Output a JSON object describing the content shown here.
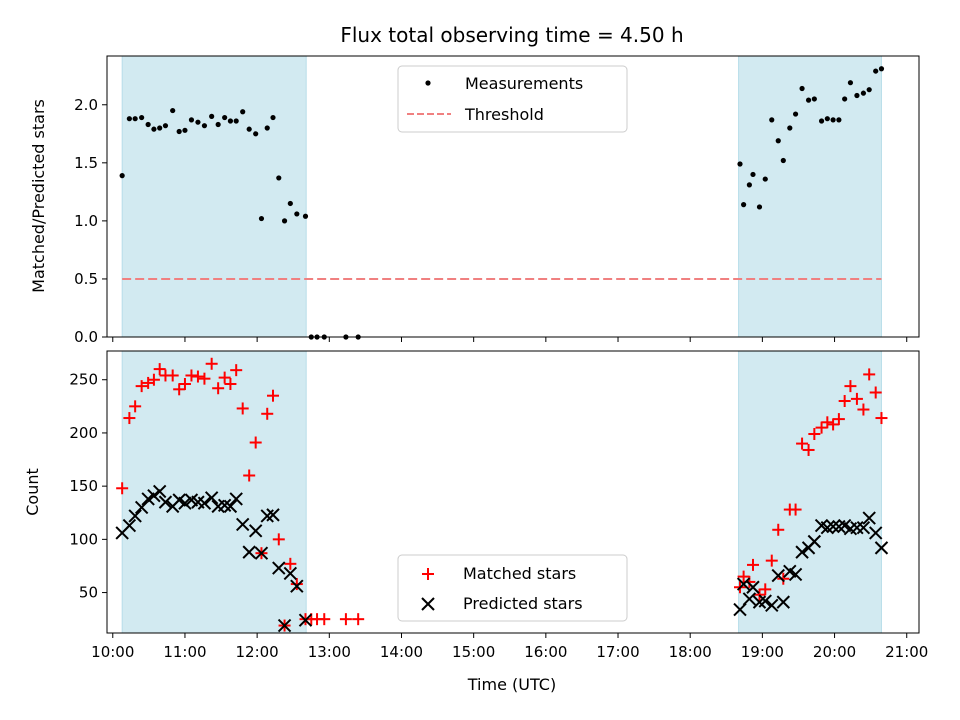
{
  "chart_data": [
    {
      "type": "scatter",
      "title": "Flux total observing time = 4.50 h",
      "xlabel": "",
      "ylabel": "Matched/Predicted stars",
      "xlim": [
        9.92,
        21.17
      ],
      "ylim": [
        0.0,
        2.42
      ],
      "yticks": [
        0.0,
        0.5,
        1.0,
        1.5,
        2.0
      ],
      "yticklabels": [
        "0.0",
        "0.5",
        "1.0",
        "1.5",
        "2.0"
      ],
      "shaded_spans": [
        {
          "start": 10.13,
          "end": 12.68,
          "color": "#add8e6"
        },
        {
          "start": 18.67,
          "end": 20.65,
          "color": "#add8e6"
        }
      ],
      "threshold": {
        "name": "Threshold",
        "value": 0.5,
        "x_start": 10.13,
        "x_end": 20.65,
        "color": "#f08080",
        "style": "dashed"
      },
      "legend_position": "top-center",
      "series": [
        {
          "name": "Measurements",
          "marker": "dot",
          "color": "#000000",
          "x": [
            10.13,
            10.23,
            10.31,
            10.4,
            10.49,
            10.57,
            10.65,
            10.73,
            10.83,
            10.92,
            11.0,
            11.09,
            11.18,
            11.27,
            11.37,
            11.46,
            11.55,
            11.63,
            11.71,
            11.8,
            11.89,
            11.98,
            12.06,
            12.14,
            12.22,
            12.3,
            12.38,
            12.46,
            12.55,
            12.67,
            12.75,
            12.83,
            12.93,
            13.23,
            13.4,
            18.69,
            18.74,
            18.82,
            18.87,
            18.96,
            19.04,
            19.13,
            19.22,
            19.29,
            19.38,
            19.46,
            19.55,
            19.64,
            19.72,
            19.82,
            19.9,
            19.98,
            20.06,
            20.14,
            20.22,
            20.31,
            20.4,
            20.48,
            20.57,
            20.65
          ],
          "y": [
            1.39,
            1.88,
            1.88,
            1.89,
            1.83,
            1.79,
            1.8,
            1.82,
            1.95,
            1.77,
            1.78,
            1.87,
            1.85,
            1.82,
            1.9,
            1.83,
            1.89,
            1.86,
            1.86,
            1.94,
            1.79,
            1.75,
            1.02,
            1.8,
            1.89,
            1.37,
            1.0,
            1.15,
            1.06,
            1.04,
            0.0,
            0.0,
            0.0,
            0.0,
            0.0,
            1.49,
            1.14,
            1.31,
            1.4,
            1.12,
            1.36,
            1.87,
            1.69,
            1.52,
            1.8,
            1.92,
            2.14,
            2.04,
            2.05,
            1.86,
            1.88,
            1.87,
            1.87,
            2.05,
            2.19,
            2.08,
            2.1,
            2.13,
            2.29,
            2.31
          ]
        }
      ]
    },
    {
      "type": "scatter",
      "xlabel": "Time (UTC)",
      "ylabel": "Count",
      "xlim": [
        9.92,
        21.17
      ],
      "ylim": [
        12,
        277
      ],
      "yticks": [
        50,
        100,
        150,
        200,
        250
      ],
      "yticklabels": [
        "50",
        "100",
        "150",
        "200",
        "250"
      ],
      "xticks": [
        10,
        11,
        12,
        13,
        14,
        15,
        16,
        17,
        18,
        19,
        20,
        21
      ],
      "xticklabels": [
        "10:00",
        "11:00",
        "12:00",
        "13:00",
        "14:00",
        "15:00",
        "16:00",
        "17:00",
        "18:00",
        "19:00",
        "20:00",
        "21:00"
      ],
      "shaded_spans": [
        {
          "start": 10.13,
          "end": 12.68,
          "color": "#add8e6"
        },
        {
          "start": 18.67,
          "end": 20.65,
          "color": "#add8e6"
        }
      ],
      "legend_position": "bottom-center",
      "series": [
        {
          "name": "Matched stars",
          "marker": "plus",
          "color": "#ff0000",
          "x": [
            10.13,
            10.23,
            10.31,
            10.4,
            10.49,
            10.57,
            10.65,
            10.73,
            10.83,
            10.92,
            11.0,
            11.09,
            11.18,
            11.27,
            11.37,
            11.46,
            11.55,
            11.63,
            11.71,
            11.8,
            11.89,
            11.98,
            12.06,
            12.14,
            12.22,
            12.3,
            12.38,
            12.46,
            12.55,
            12.67,
            12.75,
            12.83,
            12.93,
            13.23,
            13.4,
            18.69,
            18.74,
            18.82,
            18.87,
            18.96,
            19.04,
            19.13,
            19.22,
            19.29,
            19.38,
            19.46,
            19.55,
            19.64,
            19.72,
            19.82,
            19.9,
            19.98,
            20.06,
            20.14,
            20.22,
            20.31,
            20.4,
            20.48,
            20.57,
            20.65
          ],
          "y": [
            148,
            214,
            225,
            244,
            247,
            250,
            260,
            254,
            254,
            241,
            246,
            254,
            253,
            251,
            265,
            242,
            252,
            246,
            259,
            223,
            160,
            191,
            87,
            218,
            235,
            100,
            19,
            77,
            58,
            25,
            25,
            25,
            25,
            25,
            25,
            55,
            65,
            60,
            76,
            48,
            53,
            80,
            109,
            63,
            128,
            128,
            190,
            184,
            199,
            205,
            210,
            208,
            213,
            230,
            244,
            232,
            222,
            255,
            238,
            214
          ]
        },
        {
          "name": "Predicted stars",
          "marker": "x",
          "color": "#000000",
          "x": [
            10.13,
            10.23,
            10.31,
            10.4,
            10.49,
            10.57,
            10.65,
            10.73,
            10.83,
            10.92,
            11.0,
            11.09,
            11.18,
            11.27,
            11.37,
            11.46,
            11.55,
            11.63,
            11.71,
            11.8,
            11.89,
            11.98,
            12.06,
            12.14,
            12.22,
            12.3,
            12.38,
            12.46,
            12.55,
            12.67,
            18.69,
            18.74,
            18.82,
            18.87,
            18.96,
            19.04,
            19.13,
            19.22,
            19.29,
            19.38,
            19.46,
            19.55,
            19.64,
            19.72,
            19.82,
            19.9,
            19.98,
            20.06,
            20.14,
            20.22,
            20.31,
            20.4,
            20.48,
            20.57,
            20.65
          ],
          "y": [
            106,
            113,
            122,
            130,
            138,
            141,
            145,
            135,
            131,
            137,
            134,
            137,
            135,
            134,
            139,
            131,
            132,
            131,
            138,
            114,
            88,
            108,
            87,
            122,
            123,
            73,
            19,
            68,
            56,
            24,
            34,
            58,
            44,
            55,
            41,
            42,
            38,
            66,
            41,
            70,
            67,
            88,
            92,
            98,
            113,
            111,
            112,
            112,
            113,
            110,
            111,
            111,
            120,
            106,
            92
          ]
        }
      ]
    }
  ]
}
